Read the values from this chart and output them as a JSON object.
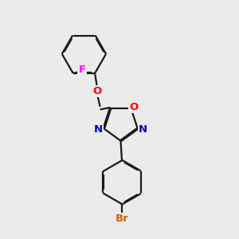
{
  "bg_color": "#ebebeb",
  "bond_color": "#1a1a1a",
  "bond_width": 1.6,
  "atom_colors": {
    "O": "#ff0000",
    "N": "#0000cc",
    "F": "#ff00ff",
    "Br": "#cc6600",
    "C": "#1a1a1a"
  },
  "font_size_atom": 9.5
}
